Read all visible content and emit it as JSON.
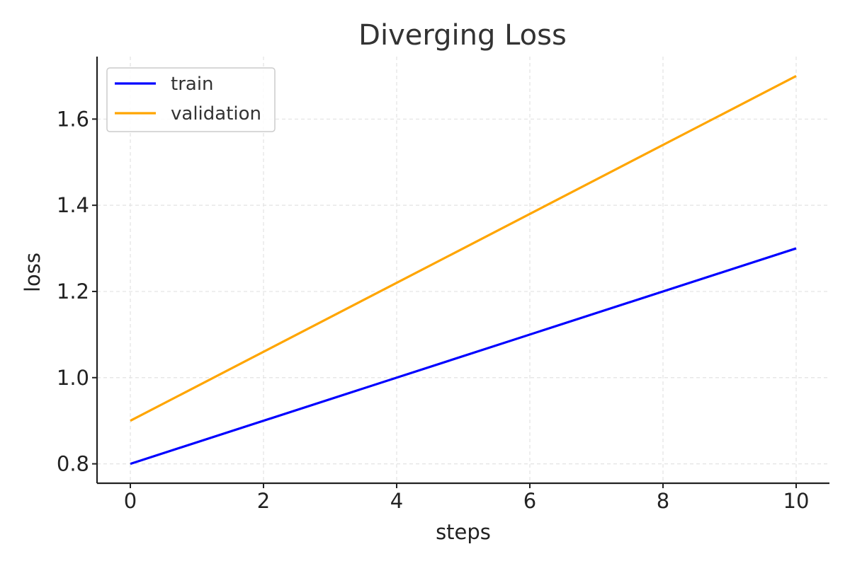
{
  "chart_data": {
    "type": "line",
    "title": "Diverging Loss",
    "xlabel": "steps",
    "ylabel": "loss",
    "x": [
      0,
      10
    ],
    "xlim": [
      -0.5,
      10.5
    ],
    "ylim": [
      0.755,
      1.745
    ],
    "xticks": [
      0,
      2,
      4,
      6,
      8,
      10
    ],
    "xtick_labels": [
      "0",
      "2",
      "4",
      "6",
      "8",
      "10"
    ],
    "yticks": [
      0.8,
      1.0,
      1.2,
      1.4,
      1.6
    ],
    "ytick_labels": [
      "0.8",
      "1.0",
      "1.2",
      "1.4",
      "1.6"
    ],
    "grid": true,
    "legend_position": "top-left",
    "series": [
      {
        "name": "train",
        "color": "#0000ff",
        "values": [
          0.8,
          1.3
        ]
      },
      {
        "name": "validation",
        "color": "#ffa500",
        "values": [
          0.9,
          1.7
        ]
      }
    ]
  }
}
